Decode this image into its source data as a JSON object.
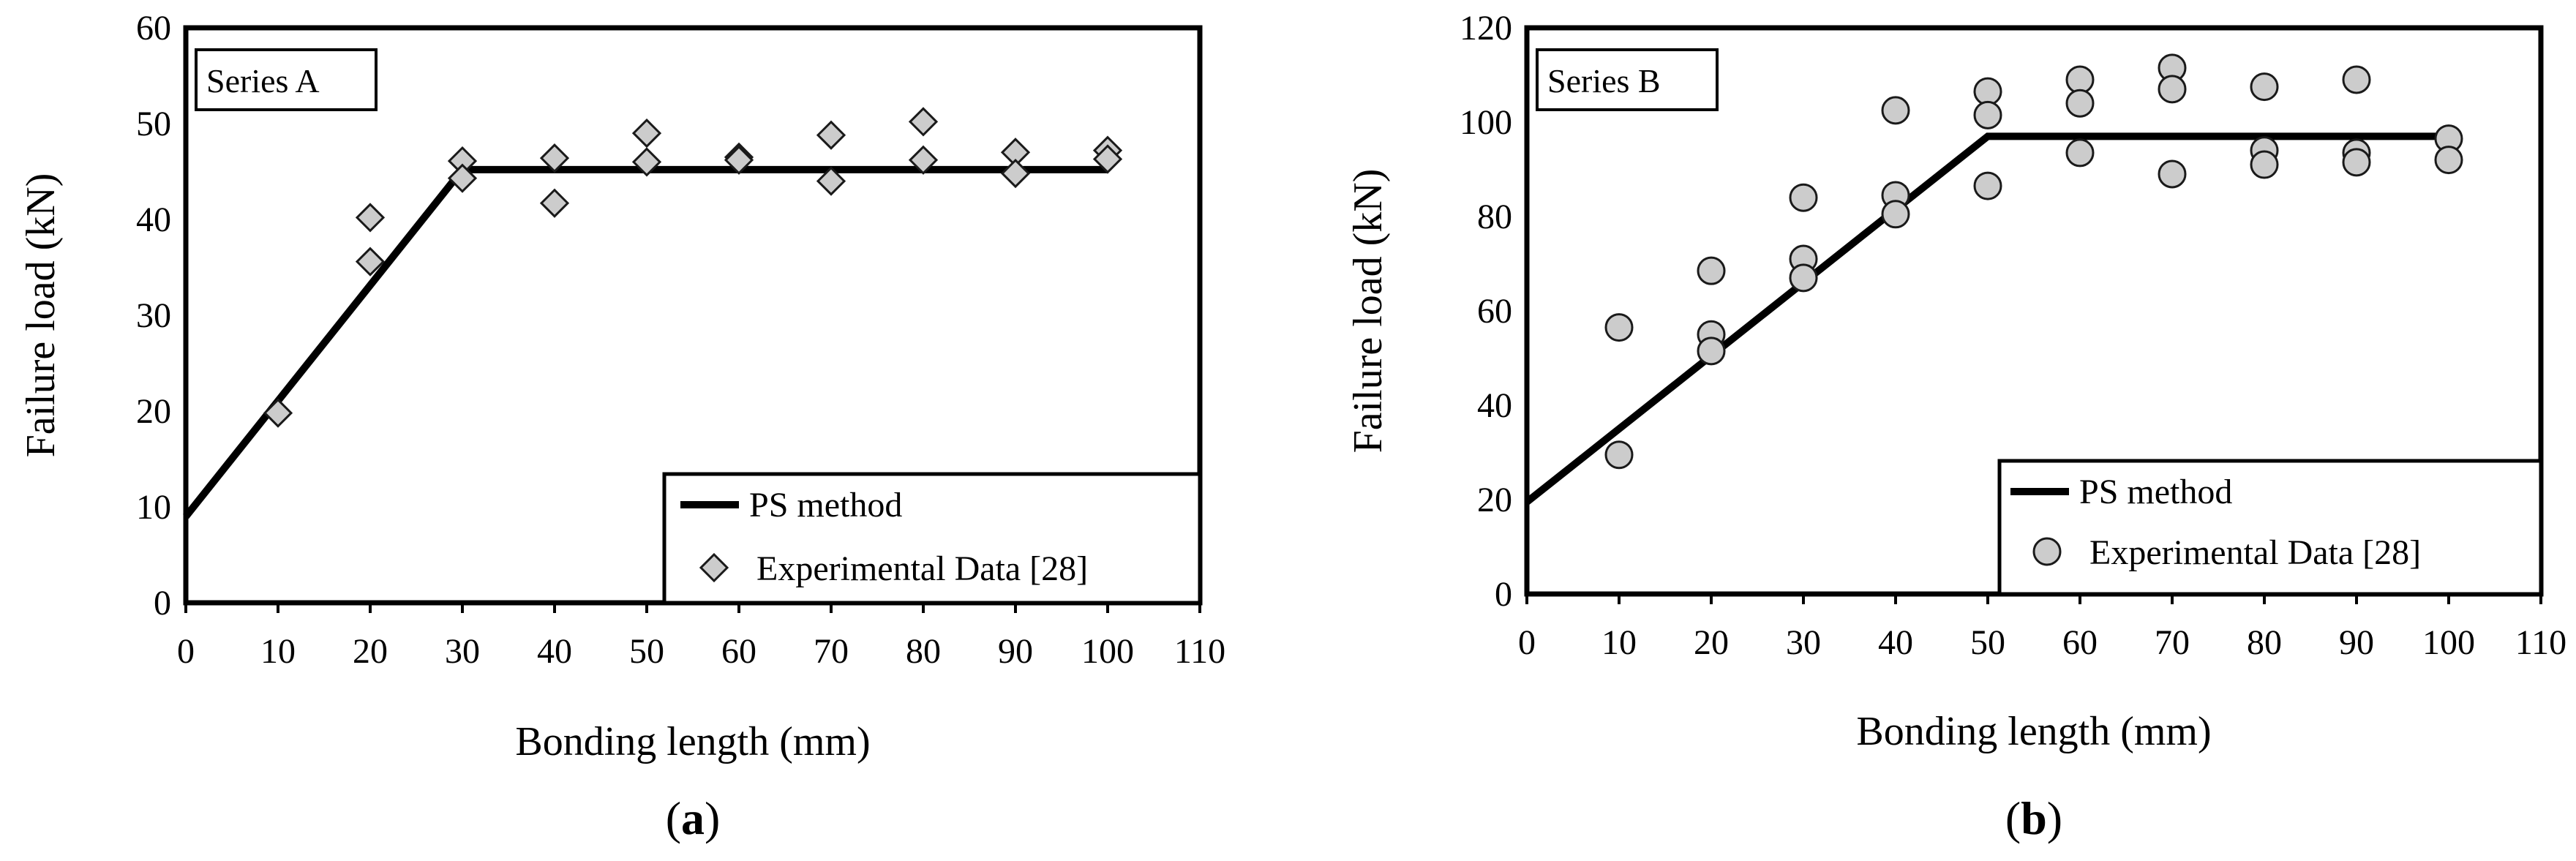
{
  "chart_data": [
    {
      "type": "scatter",
      "panel": "a",
      "caption_letter": "a",
      "series_label": "Series A",
      "xlabel": "Bonding length (mm)",
      "ylabel": "Failure load (kN)",
      "xlim": [
        0,
        110
      ],
      "ylim": [
        0,
        60
      ],
      "xticks": [
        0,
        10,
        20,
        30,
        40,
        50,
        60,
        70,
        80,
        90,
        100,
        110
      ],
      "yticks": [
        0,
        10,
        20,
        30,
        40,
        50,
        60
      ],
      "grid": false,
      "legend_position": "bottom-right",
      "marker": "diamond",
      "series": [
        {
          "name": "PS method",
          "kind": "line",
          "x": [
            0,
            30,
            100
          ],
          "y": [
            9,
            45.2,
            45.2
          ]
        },
        {
          "name": "Experimental Data [28]",
          "kind": "scatter",
          "x": [
            10,
            20,
            20,
            30,
            30,
            40,
            40,
            50,
            50,
            60,
            60,
            70,
            70,
            80,
            80,
            90,
            90,
            100,
            100
          ],
          "y": [
            19.8,
            40.2,
            35.6,
            46.1,
            44.3,
            46.4,
            41.7,
            49.0,
            46.0,
            46.5,
            46.2,
            48.8,
            44.0,
            50.2,
            46.2,
            47.0,
            44.8,
            47.2,
            46.3
          ]
        }
      ]
    },
    {
      "type": "scatter",
      "panel": "b",
      "caption_letter": "b",
      "series_label": "Series B",
      "xlabel": "Bonding length (mm)",
      "ylabel": "Failure load (kN)",
      "xlim": [
        0,
        110
      ],
      "ylim": [
        0,
        120
      ],
      "xticks": [
        0,
        10,
        20,
        30,
        40,
        50,
        60,
        70,
        80,
        90,
        100,
        110
      ],
      "yticks": [
        0,
        20,
        40,
        60,
        80,
        100,
        120
      ],
      "grid": false,
      "legend_position": "bottom-right",
      "marker": "circle",
      "series": [
        {
          "name": "PS method",
          "kind": "line",
          "x": [
            0,
            50,
            100
          ],
          "y": [
            19.5,
            97,
            97
          ]
        },
        {
          "name": "Experimental Data [28]",
          "kind": "scatter",
          "x": [
            10,
            10,
            20,
            20,
            20,
            30,
            30,
            30,
            40,
            40,
            40,
            50,
            50,
            50,
            60,
            60,
            60,
            70,
            70,
            70,
            80,
            80,
            80,
            90,
            90,
            90,
            100,
            100
          ],
          "y": [
            56.5,
            29.5,
            68.5,
            55.0,
            51.5,
            84.0,
            71.0,
            67.0,
            102.5,
            84.5,
            80.5,
            106.5,
            101.5,
            86.5,
            109.0,
            104.0,
            93.5,
            111.5,
            107.0,
            89.0,
            107.5,
            94.0,
            91.0,
            109.0,
            93.5,
            91.5,
            96.5,
            92.0
          ]
        }
      ]
    }
  ]
}
